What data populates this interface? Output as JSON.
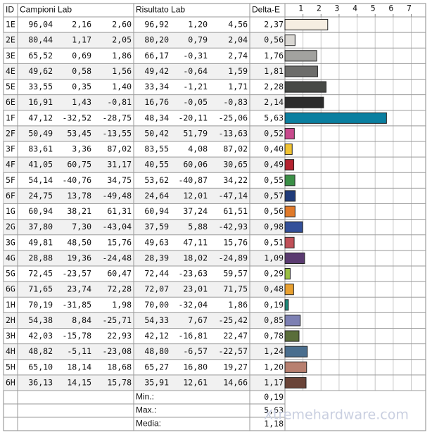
{
  "table": {
    "columns": [
      "ID",
      "Campioni Lab",
      "Risultato Lab",
      "Delta-E"
    ],
    "rows": [
      [
        "96,04",
        "2,16",
        "2,60",
        "96,92",
        "1,20",
        "4,56"
      ],
      [
        "80,44",
        "1,17",
        "2,05",
        "80,20",
        "0,79",
        "2,04"
      ],
      [
        "65,52",
        "0,69",
        "1,86",
        "66,17",
        "-0,31",
        "2,74"
      ],
      [
        "49,62",
        "0,58",
        "1,56",
        "49,42",
        "-0,64",
        "1,59"
      ],
      [
        "33,55",
        "0,35",
        "1,40",
        "33,34",
        "-1,21",
        "1,71"
      ],
      [
        "16,91",
        "1,43",
        "-0,81",
        "16,76",
        "-0,05",
        "-0,83"
      ],
      [
        "47,12",
        "-32,52",
        "-28,75",
        "48,34",
        "-20,11",
        "-25,06"
      ],
      [
        "50,49",
        "53,45",
        "-13,55",
        "50,42",
        "51,79",
        "-13,63"
      ],
      [
        "83,61",
        "3,36",
        "87,02",
        "83,55",
        "4,08",
        "87,02"
      ],
      [
        "41,05",
        "60,75",
        "31,17",
        "40,55",
        "60,06",
        "30,65"
      ],
      [
        "54,14",
        "-40,76",
        "34,75",
        "53,62",
        "-40,87",
        "34,22"
      ],
      [
        "24,75",
        "13,78",
        "-49,48",
        "24,64",
        "12,01",
        "-47,14"
      ],
      [
        "60,94",
        "38,21",
        "61,31",
        "60,94",
        "37,24",
        "61,51"
      ],
      [
        "37,80",
        "7,30",
        "-43,04",
        "37,59",
        "5,88",
        "-42,93"
      ],
      [
        "49,81",
        "48,50",
        "15,76",
        "49,63",
        "47,11",
        "15,76"
      ],
      [
        "28,88",
        "19,36",
        "-24,48",
        "28,39",
        "18,02",
        "-24,89"
      ],
      [
        "72,45",
        "-23,57",
        "60,47",
        "72,44",
        "-23,63",
        "59,57"
      ],
      [
        "71,65",
        "23,74",
        "72,28",
        "72,07",
        "23,01",
        "71,75"
      ],
      [
        "70,19",
        "-31,85",
        "1,98",
        "70,00",
        "-32,04",
        "1,86"
      ],
      [
        "54,38",
        "8,84",
        "-25,71",
        "54,33",
        "7,67",
        "-25,42"
      ],
      [
        "42,03",
        "-15,78",
        "22,93",
        "42,12",
        "-16,81",
        "22,47"
      ],
      [
        "48,82",
        "-5,11",
        "-23,08",
        "48,80",
        "-6,57",
        "-22,57"
      ],
      [
        "65,10",
        "18,14",
        "18,68",
        "65,27",
        "16,80",
        "19,27"
      ],
      [
        "36,13",
        "14,15",
        "15,78",
        "35,91",
        "12,61",
        "14,66"
      ]
    ],
    "summary": [
      {
        "label": "Min.:",
        "value": "0,19"
      },
      {
        "label": "Max.:",
        "value": "5,63"
      },
      {
        "label": "Media:",
        "value": "1,18"
      }
    ]
  },
  "chart_data": {
    "type": "bar",
    "orientation": "horizontal",
    "categories": [
      "1E",
      "2E",
      "3E",
      "4E",
      "5E",
      "6E",
      "1F",
      "2F",
      "3F",
      "4F",
      "5F",
      "6F",
      "1G",
      "2G",
      "3G",
      "4G",
      "5G",
      "6G",
      "1H",
      "2H",
      "3H",
      "4H",
      "5H",
      "6H"
    ],
    "values": [
      2.37,
      0.56,
      1.76,
      1.81,
      2.28,
      2.14,
      5.63,
      0.52,
      0.4,
      0.49,
      0.55,
      0.57,
      0.56,
      0.98,
      0.51,
      1.09,
      0.29,
      0.48,
      0.19,
      0.85,
      0.78,
      1.24,
      1.2,
      1.17
    ],
    "value_labels": [
      "2,37",
      "0,56",
      "1,76",
      "1,81",
      "2,28",
      "2,14",
      "5,63",
      "0,52",
      "0,40",
      "0,49",
      "0,55",
      "0,57",
      "0,56",
      "0,98",
      "0,51",
      "1,09",
      "0,29",
      "0,48",
      "0,19",
      "0,85",
      "0,78",
      "1,24",
      "1,20",
      "1,17"
    ],
    "colors": [
      "#f6eee2",
      "#d9d7d3",
      "#a2a29f",
      "#6c6c6a",
      "#474946",
      "#2c2c2c",
      "#0a7fa0",
      "#c84a8d",
      "#f1c232",
      "#b52330",
      "#3a8f46",
      "#1f3b7a",
      "#e07a2a",
      "#33509a",
      "#c05058",
      "#5a3a70",
      "#9ac043",
      "#e8a030",
      "#1d8a7a",
      "#7d80b3",
      "#5a6e3a",
      "#4a6e8e",
      "#b88070",
      "#6a4438"
    ],
    "xlim": [
      0,
      7.8
    ],
    "xticks": [
      1,
      2,
      3,
      4,
      5,
      6,
      7
    ],
    "grid": true
  },
  "watermark": "Xtremehardware.com"
}
